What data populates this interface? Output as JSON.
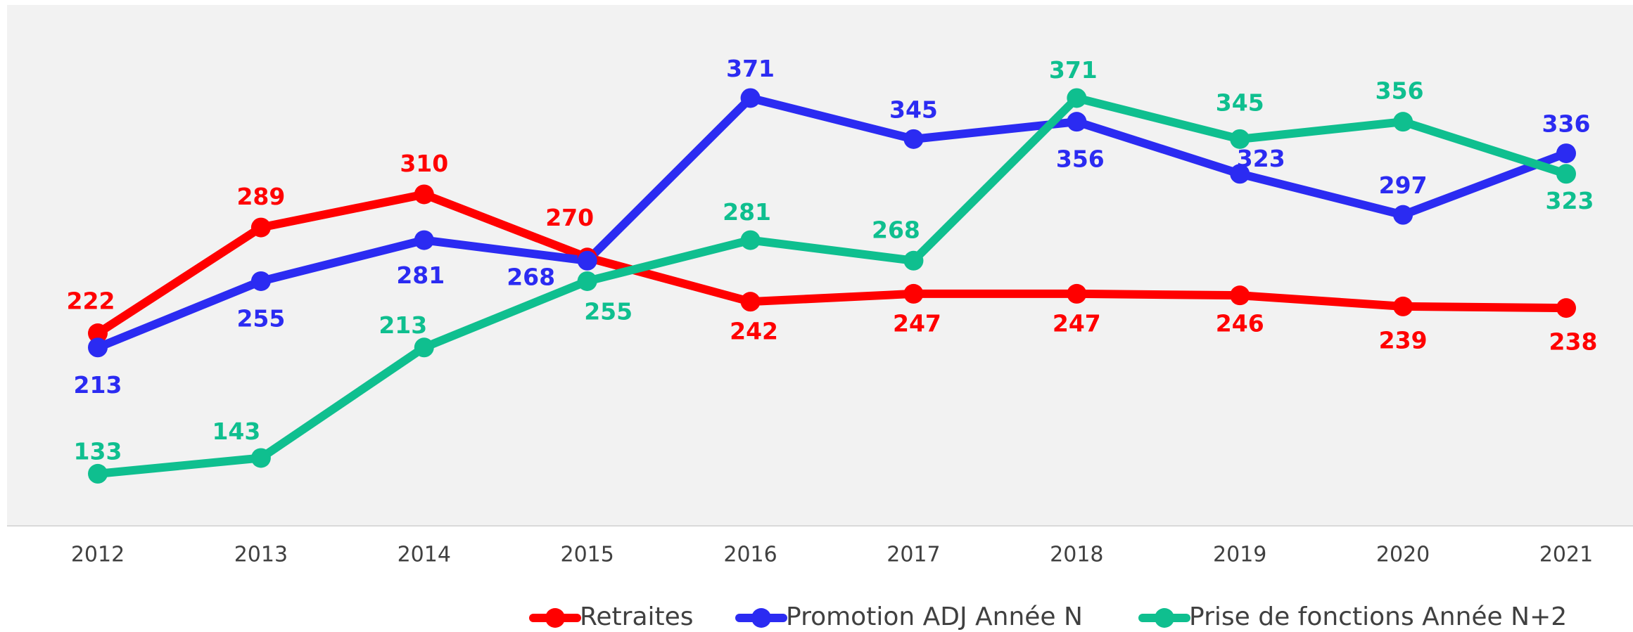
{
  "chart_data": {
    "type": "line",
    "categories": [
      "2012",
      "2013",
      "2014",
      "2015",
      "2016",
      "2017",
      "2018",
      "2019",
      "2020",
      "2021"
    ],
    "series": [
      {
        "name": "Retraites",
        "color": "#ff0000",
        "values": [
          222,
          289,
          310,
          270,
          242,
          247,
          247,
          246,
          239,
          238
        ]
      },
      {
        "name": "Promotion ADJ Année N",
        "color": "#2b2bf2",
        "values": [
          213,
          255,
          281,
          268,
          371,
          345,
          356,
          323,
          297,
          336
        ]
      },
      {
        "name": "Prise de fonctions Année N+2",
        "color": "#0fbf8f",
        "values": [
          133,
          143,
          213,
          255,
          281,
          268,
          371,
          345,
          356,
          323
        ]
      }
    ],
    "ylim": [
      100,
      430
    ]
  }
}
